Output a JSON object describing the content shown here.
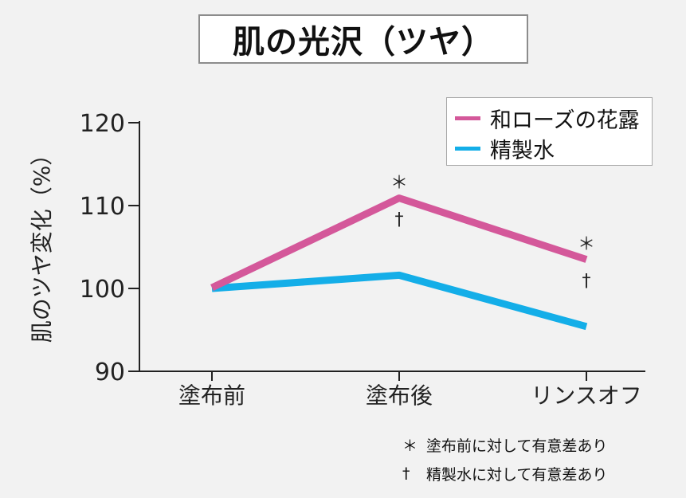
{
  "chart_data": {
    "type": "line",
    "title": "肌の光沢（ツヤ）",
    "ylabel": "肌のツヤ変化（%）",
    "xlabel": "",
    "categories": [
      "塗布前",
      "塗布後",
      "リンスオフ"
    ],
    "ylim": [
      90,
      120
    ],
    "yticks": [
      90,
      100,
      110,
      120
    ],
    "series": [
      {
        "name": "和ローズの花露",
        "color": "#d4589a",
        "values": [
          100.1,
          110.9,
          103.5
        ]
      },
      {
        "name": "精製水",
        "color": "#14aee8",
        "values": [
          100.0,
          101.6,
          95.4
        ]
      }
    ],
    "annotations": [
      {
        "category_index": 1,
        "series_index": 0,
        "star": "＊",
        "dagger": "†"
      },
      {
        "category_index": 2,
        "series_index": 0,
        "star": "＊",
        "dagger": "†"
      }
    ],
    "legend_position": "top-right"
  },
  "footnotes": {
    "star": {
      "symbol": "＊",
      "text": "塗布前に対して有意差あり"
    },
    "dagger": {
      "symbol": "†",
      "text": "精製水に対して有意差あり"
    }
  }
}
